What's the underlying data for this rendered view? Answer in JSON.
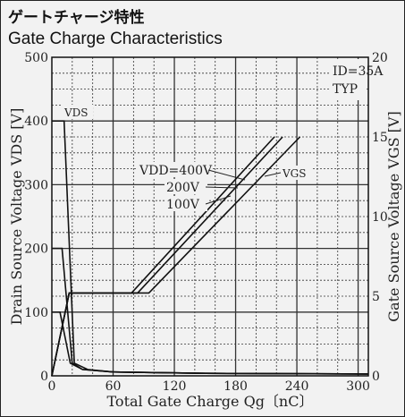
{
  "header": {
    "title_jp": "ゲートチャージ特性",
    "title_en": "Gate Charge Characteristics"
  },
  "chart_data": {
    "type": "line",
    "x_label": "Total Gate Charge  Qg〔nC〕",
    "y_left_label": "Drain Source Voltage VDS [V]",
    "y_right_label": "Gate Source Voltage VGS [V]",
    "xlim": [
      0,
      310
    ],
    "ylim_left": [
      0,
      500
    ],
    "ylim_right": [
      0,
      20
    ],
    "x_ticks": [
      0,
      60,
      120,
      180,
      240,
      300
    ],
    "y_left_ticks": [
      0,
      100,
      200,
      300,
      400,
      500
    ],
    "y_right_ticks": [
      0,
      5,
      10,
      15,
      20
    ],
    "grid": true,
    "conditions": {
      "line1": "ID=35A",
      "line2": "TYP"
    },
    "annotations": {
      "vds": "VDS",
      "vgs": "VGS",
      "vdd_400": "VDD=400V",
      "vdd_200": "200V",
      "vdd_100": "100V"
    },
    "series": [
      {
        "axis": "left",
        "points": [
          [
            0,
            400
          ],
          [
            12,
            400
          ],
          [
            22,
            20
          ],
          [
            35,
            10
          ],
          [
            60,
            6
          ],
          [
            150,
            4
          ],
          [
            310,
            3
          ]
        ]
      },
      {
        "axis": "left",
        "points": [
          [
            0,
            200
          ],
          [
            10,
            200
          ],
          [
            20,
            20
          ],
          [
            30,
            10
          ],
          [
            60,
            6
          ],
          [
            150,
            4
          ],
          [
            310,
            3
          ]
        ]
      },
      {
        "axis": "left",
        "points": [
          [
            0,
            100
          ],
          [
            8,
            100
          ],
          [
            18,
            20
          ],
          [
            30,
            10
          ],
          [
            60,
            6
          ],
          [
            150,
            4
          ],
          [
            310,
            3
          ]
        ]
      },
      {
        "axis": "right",
        "points": [
          [
            0,
            0
          ],
          [
            17,
            5.2
          ],
          [
            78,
            5.2
          ],
          [
            218,
            15
          ]
        ]
      },
      {
        "axis": "right",
        "points": [
          [
            0,
            0
          ],
          [
            17,
            5.2
          ],
          [
            84,
            5.2
          ],
          [
            226,
            15
          ]
        ]
      },
      {
        "axis": "right",
        "points": [
          [
            0,
            0
          ],
          [
            17,
            5.2
          ],
          [
            95,
            5.2
          ],
          [
            243,
            15
          ]
        ]
      }
    ]
  }
}
